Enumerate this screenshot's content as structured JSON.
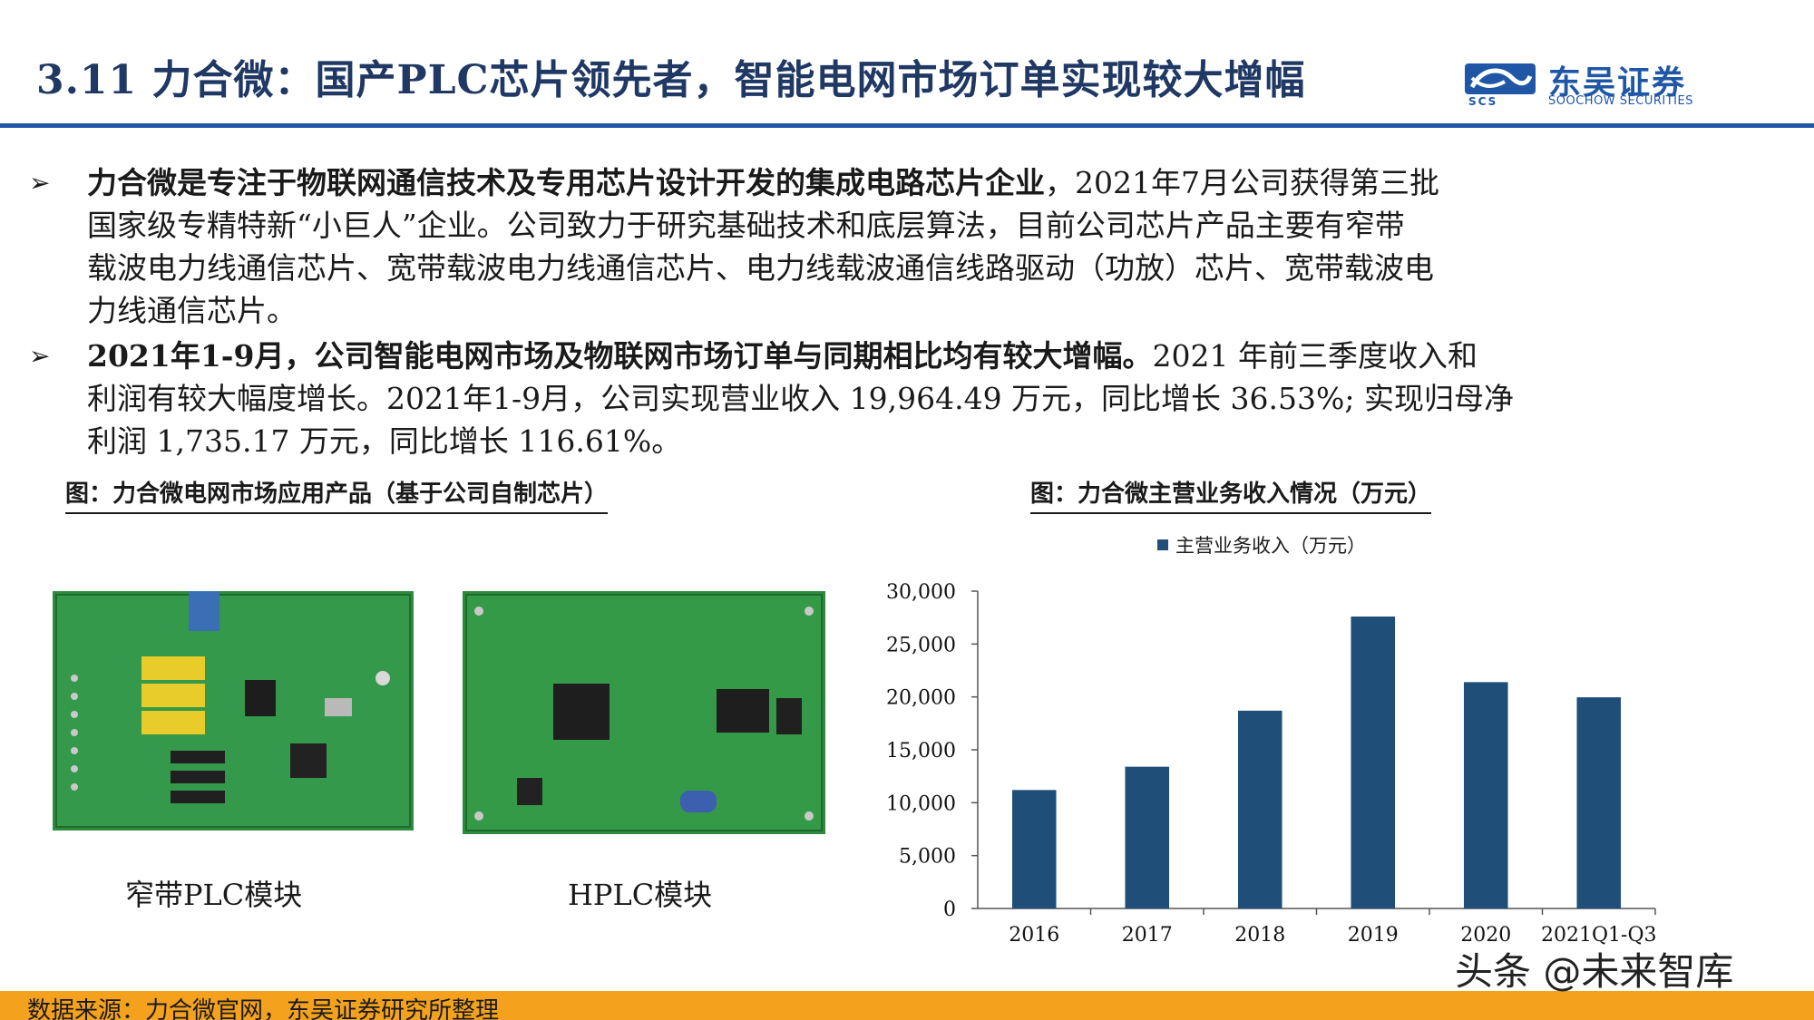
{
  "header": {
    "title": "3.11 力合微：国产PLC芯片领先者，智能电网市场订单实现较大增幅",
    "logo_cn": "东吴证券",
    "logo_en": "SOOCHOW SECURITIES",
    "logo_abbr": "SCS",
    "accent": "#1f57a6"
  },
  "bullets": [
    {
      "lead": "力合微是专注于物联网通信技术及专用芯片设计开发的集成电路芯片企业",
      "lines": [
        "，2021年7月公司获得第三批",
        "国家级专精特新“小巨人”企业。公司致力于研究基础技术和底层算法，目前公司芯片产品主要有窄带",
        "载波电力线通信芯片、宽带载波电力线通信芯片、电力线载波通信线路驱动（功放）芯片、宽带载波电",
        "力线通信芯片。"
      ]
    },
    {
      "lead": "2021年1-9月，公司智能电网市场及物联网市场订单与同期相比均有较大增幅。",
      "lines": [
        "2021 年前三季度收入和",
        "利润有较大幅度增长。2021年1-9月，公司实现营业收入 19,964.49 万元，同比增长 36.53%; 实现归母净",
        "利润 1,735.17 万元，同比增长 116.61%。"
      ]
    }
  ],
  "left_figure": {
    "caption": "图：力合微电网市场应用产品（基于公司自制芯片）",
    "items": [
      {
        "label": "窄带PLC模块",
        "icon": "pcb-narrowband-module-image"
      },
      {
        "label": "HPLC模块",
        "icon": "pcb-hplc-module-image"
      }
    ]
  },
  "right_figure": {
    "caption": "图：力合微主营业务收入情况（万元）"
  },
  "chart_data": {
    "type": "bar",
    "title": "",
    "categories": [
      "2016",
      "2017",
      "2018",
      "2019",
      "2020",
      "2021Q1-Q3"
    ],
    "series": [
      {
        "name": "主营业务收入（万元）",
        "values": [
          11200,
          13400,
          18700,
          27600,
          21400,
          19964.49
        ],
        "color": "#1f4e79"
      }
    ],
    "ylim": [
      0,
      30000
    ],
    "yticks": [
      0,
      5000,
      10000,
      15000,
      20000,
      25000,
      30000
    ],
    "ytick_labels": [
      "0",
      "5,000",
      "10,000",
      "15,000",
      "20,000",
      "25,000",
      "30,000"
    ],
    "xlabel": "",
    "ylabel": "",
    "grid": false,
    "legend_position": "top"
  },
  "footer": {
    "source": "数据来源：力合微官网，东吴证券研究所整理",
    "bar_color": "#f4a21e",
    "watermark": "头条 @未来智库"
  }
}
